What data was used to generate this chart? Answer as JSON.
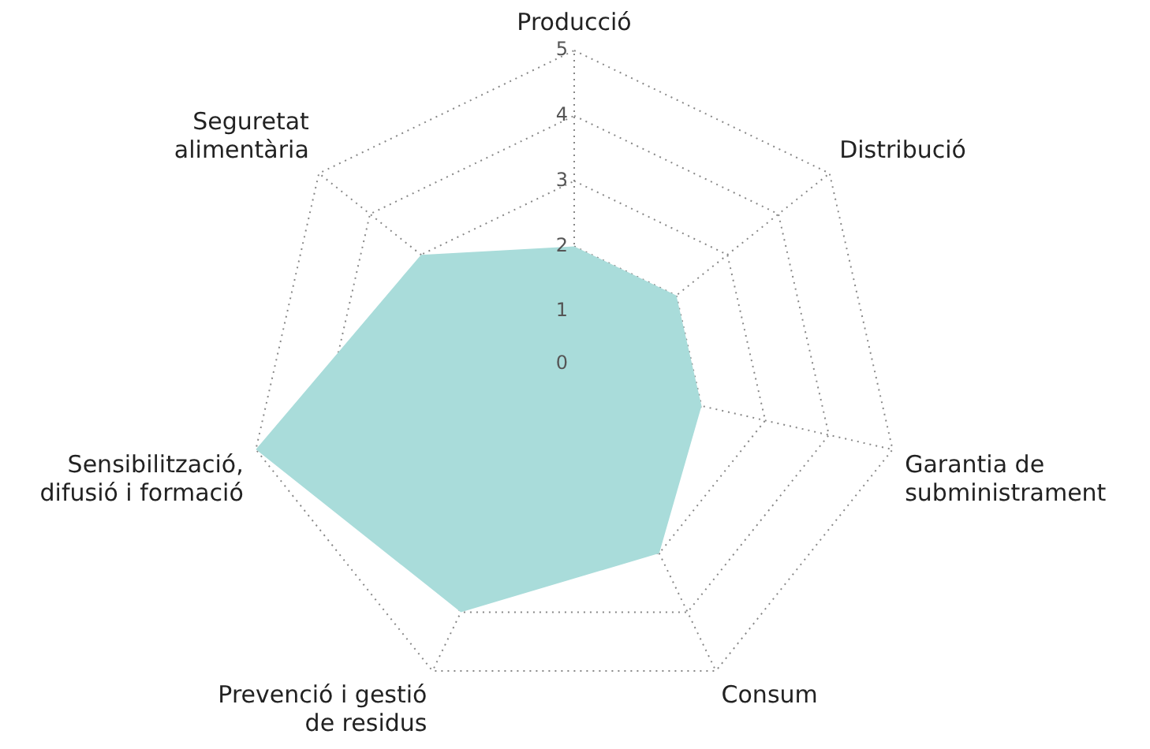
{
  "chart_data": {
    "type": "radar",
    "categories": [
      "Producció",
      "Distribució",
      "Garantia de\nsubministrament",
      "Consum",
      "Prevenció i gestió\nde residus",
      "Sensibilització,\ndifusió i formació",
      "Seguretat\nalimentària"
    ],
    "series": [
      {
        "color": "#a9dcda",
        "values": [
          2,
          2,
          2,
          3,
          4,
          5,
          3
        ]
      }
    ],
    "ylim": [
      0,
      5
    ],
    "yticks": [
      0,
      1,
      2,
      3,
      4,
      5
    ],
    "grid": true,
    "legend": false,
    "marker": "none"
  }
}
